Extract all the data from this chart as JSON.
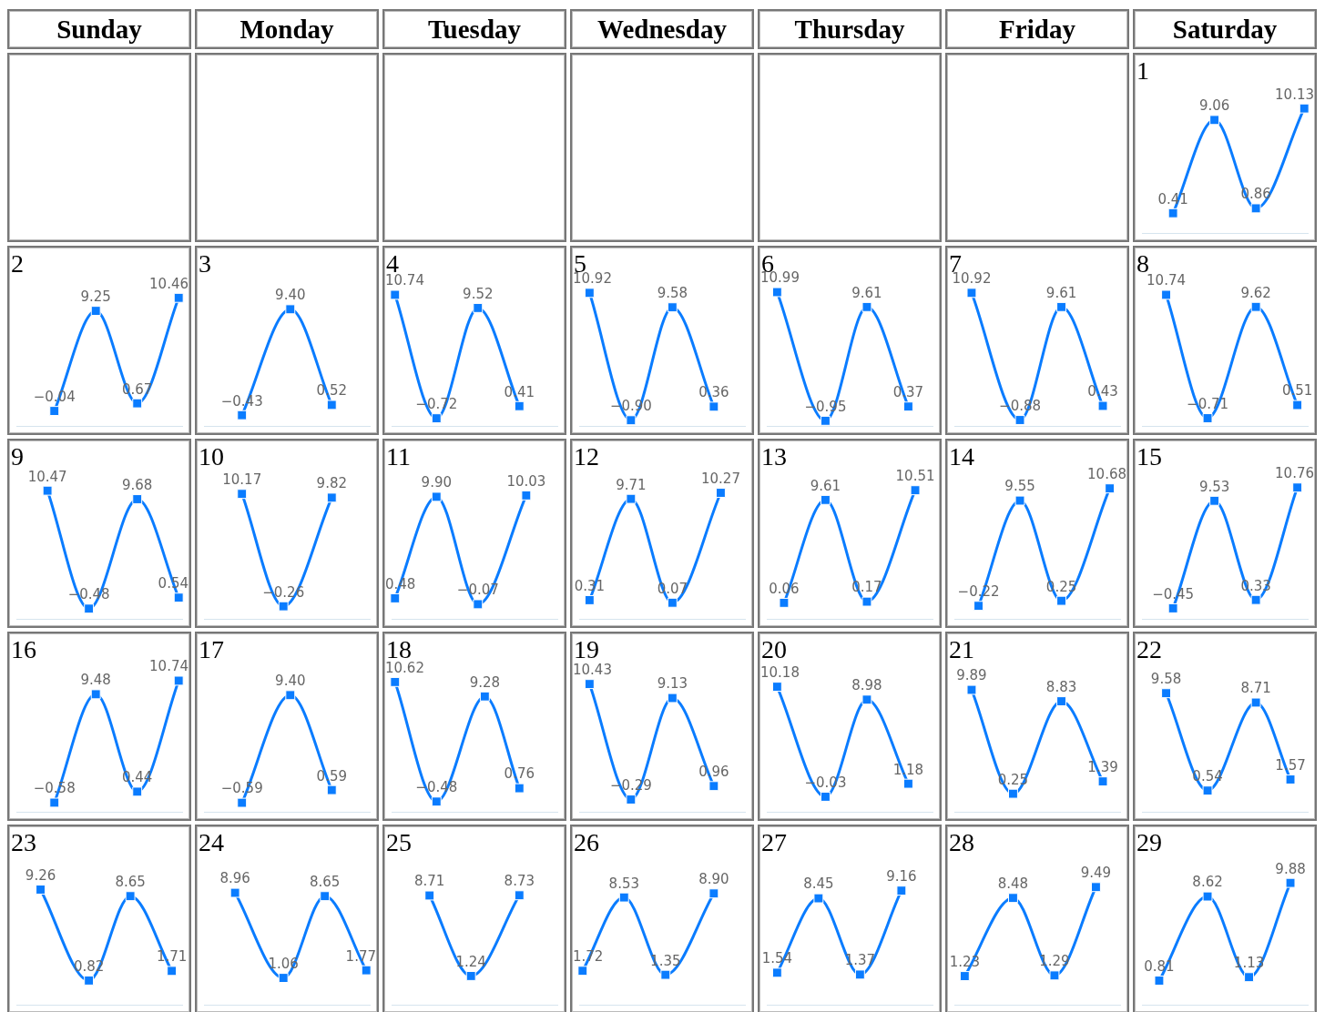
{
  "chart_data": [
    {
      "type": "other",
      "annotations": [
        "Sunday",
        "Monday",
        "Tuesday",
        "Wednesday",
        "Thursday",
        "Friday",
        "Saturday"
      ]
    },
    {
      "type": "line",
      "title": "1",
      "categories": [
        null,
        null,
        null,
        null,
        null,
        null,
        null,
        null,
        null,
        null,
        null,
        null,
        null,
        null,
        null,
        null,
        null,
        null,
        null,
        null,
        null,
        null,
        null,
        null
      ],
      "values": [
        null,
        null,
        null,
        null,
        0.41,
        null,
        null,
        null,
        null,
        null,
        9.06,
        null,
        null,
        null,
        null,
        null,
        0.86,
        null,
        null,
        null,
        null,
        null,
        null,
        10.13
      ],
      "value_labels": [
        null,
        null,
        null,
        null,
        "0.41",
        null,
        null,
        null,
        null,
        null,
        "9.06",
        null,
        null,
        null,
        null,
        null,
        "0.86",
        null,
        null,
        null,
        null,
        null,
        null,
        "10.13"
      ],
      "color": "#0a7cff",
      "marker": "square",
      "tick_labels": false
    },
    {
      "type": "line",
      "title": "2",
      "categories": [
        null,
        null,
        null,
        null,
        null,
        null,
        null,
        null,
        null,
        null,
        null,
        null,
        null,
        null,
        null,
        null,
        null,
        null,
        null,
        null,
        null,
        null,
        null,
        null
      ],
      "values": [
        null,
        null,
        null,
        null,
        null,
        -0.04,
        null,
        null,
        null,
        null,
        null,
        9.25,
        null,
        null,
        null,
        null,
        null,
        0.67,
        null,
        null,
        null,
        null,
        null,
        10.46
      ],
      "value_labels": [
        null,
        null,
        null,
        null,
        null,
        "−0.04",
        null,
        null,
        null,
        null,
        null,
        "9.25",
        null,
        null,
        null,
        null,
        null,
        "0.67",
        null,
        null,
        null,
        null,
        null,
        "10.46"
      ],
      "color": "#0a7cff",
      "marker": "square",
      "tick_labels": false
    },
    {
      "type": "line",
      "title": "3",
      "categories": [
        null,
        null,
        null,
        null,
        null,
        null,
        null,
        null,
        null,
        null,
        null,
        null,
        null,
        null,
        null,
        null,
        null,
        null,
        null,
        null,
        null,
        null,
        null,
        null
      ],
      "values": [
        null,
        null,
        null,
        null,
        null,
        -0.43,
        null,
        null,
        null,
        null,
        null,
        null,
        9.4,
        null,
        null,
        null,
        null,
        null,
        0.52,
        null,
        null,
        null,
        null,
        null
      ],
      "value_labels": [
        null,
        null,
        null,
        null,
        null,
        "−0.43",
        null,
        null,
        null,
        null,
        null,
        null,
        "9.40",
        null,
        null,
        null,
        null,
        null,
        "0.52",
        null,
        null,
        null,
        null,
        null
      ],
      "color": "#0a7cff",
      "marker": "square",
      "tick_labels": false
    },
    {
      "type": "line",
      "title": "4",
      "categories": [
        null,
        null,
        null,
        null,
        null,
        null,
        null,
        null,
        null,
        null,
        null,
        null,
        null,
        null,
        null,
        null,
        null,
        null,
        null,
        null,
        null,
        null,
        null,
        null
      ],
      "values": [
        10.74,
        null,
        null,
        null,
        null,
        null,
        -0.72,
        null,
        null,
        null,
        null,
        null,
        9.52,
        null,
        null,
        null,
        null,
        null,
        0.41,
        null,
        null,
        null,
        null,
        null
      ],
      "value_labels": [
        "10.74",
        null,
        null,
        null,
        null,
        null,
        "−0.72",
        null,
        null,
        null,
        null,
        null,
        "9.52",
        null,
        null,
        null,
        null,
        null,
        "0.41",
        null,
        null,
        null,
        null,
        null
      ],
      "color": "#0a7cff",
      "marker": "square",
      "tick_labels": false
    },
    {
      "type": "line",
      "title": "5",
      "categories": [
        null,
        null,
        null,
        null,
        null,
        null,
        null,
        null,
        null,
        null,
        null,
        null,
        null,
        null,
        null,
        null,
        null,
        null,
        null,
        null,
        null,
        null,
        null,
        null
      ],
      "values": [
        null,
        10.92,
        null,
        null,
        null,
        null,
        null,
        -0.9,
        null,
        null,
        null,
        null,
        null,
        9.58,
        null,
        null,
        null,
        null,
        null,
        0.36,
        null,
        null,
        null,
        null
      ],
      "value_labels": [
        null,
        "10.92",
        null,
        null,
        null,
        null,
        null,
        "−0.90",
        null,
        null,
        null,
        null,
        null,
        "9.58",
        null,
        null,
        null,
        null,
        null,
        "0.36",
        null,
        null,
        null,
        null
      ],
      "color": "#0a7cff",
      "marker": "square",
      "tick_labels": false
    },
    {
      "type": "line",
      "title": "6",
      "categories": [
        null,
        null,
        null,
        null,
        null,
        null,
        null,
        null,
        null,
        null,
        null,
        null,
        null,
        null,
        null,
        null,
        null,
        null,
        null,
        null,
        null,
        null,
        null,
        null
      ],
      "values": [
        null,
        10.99,
        null,
        null,
        null,
        null,
        null,
        null,
        -0.95,
        null,
        null,
        null,
        null,
        null,
        9.61,
        null,
        null,
        null,
        null,
        null,
        0.37,
        null,
        null,
        null
      ],
      "value_labels": [
        null,
        "10.99",
        null,
        null,
        null,
        null,
        null,
        null,
        "−0.95",
        null,
        null,
        null,
        null,
        null,
        "9.61",
        null,
        null,
        null,
        null,
        null,
        "0.37",
        null,
        null,
        null
      ],
      "color": "#0a7cff",
      "marker": "square",
      "tick_labels": false
    },
    {
      "type": "line",
      "title": "7",
      "categories": [
        null,
        null,
        null,
        null,
        null,
        null,
        null,
        null,
        null,
        null,
        null,
        null,
        null,
        null,
        null,
        null,
        null,
        null,
        null,
        null,
        null,
        null,
        null,
        null
      ],
      "values": [
        null,
        null,
        10.92,
        null,
        null,
        null,
        null,
        null,
        null,
        -0.88,
        null,
        null,
        null,
        null,
        null,
        9.61,
        null,
        null,
        null,
        null,
        null,
        0.43,
        null,
        null
      ],
      "value_labels": [
        null,
        null,
        "10.92",
        null,
        null,
        null,
        null,
        null,
        null,
        "−0.88",
        null,
        null,
        null,
        null,
        null,
        "9.61",
        null,
        null,
        null,
        null,
        null,
        "0.43",
        null,
        null
      ],
      "color": "#0a7cff",
      "marker": "square",
      "tick_labels": false
    },
    {
      "type": "line",
      "title": "8",
      "categories": [
        null,
        null,
        null,
        null,
        null,
        null,
        null,
        null,
        null,
        null,
        null,
        null,
        null,
        null,
        null,
        null,
        null,
        null,
        null,
        null,
        null,
        null,
        null,
        null
      ],
      "values": [
        null,
        null,
        null,
        10.74,
        null,
        null,
        null,
        null,
        null,
        -0.71,
        null,
        null,
        null,
        null,
        null,
        null,
        9.62,
        null,
        null,
        null,
        null,
        null,
        0.51,
        null
      ],
      "value_labels": [
        null,
        null,
        null,
        "10.74",
        null,
        null,
        null,
        null,
        null,
        "−0.71",
        null,
        null,
        null,
        null,
        null,
        null,
        "9.62",
        null,
        null,
        null,
        null,
        null,
        "0.51",
        null
      ],
      "color": "#0a7cff",
      "marker": "square",
      "tick_labels": false
    },
    {
      "type": "line",
      "title": "9",
      "categories": [
        null,
        null,
        null,
        null,
        null,
        null,
        null,
        null,
        null,
        null,
        null,
        null,
        null,
        null,
        null,
        null,
        null,
        null,
        null,
        null,
        null,
        null,
        null,
        null
      ],
      "values": [
        null,
        null,
        null,
        null,
        10.47,
        null,
        null,
        null,
        null,
        null,
        -0.48,
        null,
        null,
        null,
        null,
        null,
        null,
        9.68,
        null,
        null,
        null,
        null,
        null,
        0.54
      ],
      "value_labels": [
        null,
        null,
        null,
        null,
        "10.47",
        null,
        null,
        null,
        null,
        null,
        "−0.48",
        null,
        null,
        null,
        null,
        null,
        null,
        "9.68",
        null,
        null,
        null,
        null,
        null,
        "0.54"
      ],
      "color": "#0a7cff",
      "marker": "square",
      "tick_labels": false
    },
    {
      "type": "line",
      "title": "10",
      "categories": [
        null,
        null,
        null,
        null,
        null,
        null,
        null,
        null,
        null,
        null,
        null,
        null,
        null,
        null,
        null,
        null,
        null,
        null,
        null,
        null,
        null,
        null,
        null,
        null
      ],
      "values": [
        null,
        null,
        null,
        null,
        null,
        10.17,
        null,
        null,
        null,
        null,
        null,
        -0.26,
        null,
        null,
        null,
        null,
        null,
        null,
        9.82,
        null,
        null,
        null,
        null,
        null
      ],
      "value_labels": [
        null,
        null,
        null,
        null,
        null,
        "10.17",
        null,
        null,
        null,
        null,
        null,
        "−0.26",
        null,
        null,
        null,
        null,
        null,
        null,
        "9.82",
        null,
        null,
        null,
        null,
        null
      ],
      "color": "#0a7cff",
      "marker": "square",
      "tick_labels": false
    },
    {
      "type": "line",
      "title": "11",
      "categories": [
        null,
        null,
        null,
        null,
        null,
        null,
        null,
        null,
        null,
        null,
        null,
        null,
        null,
        null,
        null,
        null,
        null,
        null,
        null,
        null,
        null,
        null,
        null,
        null
      ],
      "values": [
        0.48,
        null,
        null,
        null,
        null,
        null,
        9.9,
        null,
        null,
        null,
        null,
        null,
        -0.07,
        null,
        null,
        null,
        null,
        null,
        null,
        10.03,
        null,
        null,
        null,
        null
      ],
      "value_labels": [
        "0.48",
        null,
        null,
        null,
        null,
        null,
        "9.90",
        null,
        null,
        null,
        null,
        null,
        "−0.07",
        null,
        null,
        null,
        null,
        null,
        null,
        "10.03",
        null,
        null,
        null,
        null
      ],
      "color": "#0a7cff",
      "marker": "square",
      "tick_labels": false
    },
    {
      "type": "line",
      "title": "12",
      "categories": [
        null,
        null,
        null,
        null,
        null,
        null,
        null,
        null,
        null,
        null,
        null,
        null,
        null,
        null,
        null,
        null,
        null,
        null,
        null,
        null,
        null,
        null,
        null,
        null
      ],
      "values": [
        null,
        0.31,
        null,
        null,
        null,
        null,
        null,
        9.71,
        null,
        null,
        null,
        null,
        null,
        0.07,
        null,
        null,
        null,
        null,
        null,
        null,
        10.27,
        null,
        null,
        null
      ],
      "value_labels": [
        null,
        "0.31",
        null,
        null,
        null,
        null,
        null,
        "9.71",
        null,
        null,
        null,
        null,
        null,
        "0.07",
        null,
        null,
        null,
        null,
        null,
        null,
        "10.27",
        null,
        null,
        null
      ],
      "color": "#0a7cff",
      "marker": "square",
      "tick_labels": false
    },
    {
      "type": "line",
      "title": "13",
      "categories": [
        null,
        null,
        null,
        null,
        null,
        null,
        null,
        null,
        null,
        null,
        null,
        null,
        null,
        null,
        null,
        null,
        null,
        null,
        null,
        null,
        null,
        null,
        null,
        null
      ],
      "values": [
        null,
        null,
        0.06,
        null,
        null,
        null,
        null,
        null,
        9.61,
        null,
        null,
        null,
        null,
        null,
        0.17,
        null,
        null,
        null,
        null,
        null,
        null,
        10.51,
        null,
        null
      ],
      "value_labels": [
        null,
        null,
        "0.06",
        null,
        null,
        null,
        null,
        null,
        "9.61",
        null,
        null,
        null,
        null,
        null,
        "0.17",
        null,
        null,
        null,
        null,
        null,
        null,
        "10.51",
        null,
        null
      ],
      "color": "#0a7cff",
      "marker": "square",
      "tick_labels": false
    },
    {
      "type": "line",
      "title": "14",
      "categories": [
        null,
        null,
        null,
        null,
        null,
        null,
        null,
        null,
        null,
        null,
        null,
        null,
        null,
        null,
        null,
        null,
        null,
        null,
        null,
        null,
        null,
        null,
        null,
        null
      ],
      "values": [
        null,
        null,
        null,
        -0.22,
        null,
        null,
        null,
        null,
        null,
        9.55,
        null,
        null,
        null,
        null,
        null,
        0.25,
        null,
        null,
        null,
        null,
        null,
        null,
        10.68,
        null
      ],
      "value_labels": [
        null,
        null,
        null,
        "−0.22",
        null,
        null,
        null,
        null,
        null,
        "9.55",
        null,
        null,
        null,
        null,
        null,
        "0.25",
        null,
        null,
        null,
        null,
        null,
        null,
        "10.68",
        null
      ],
      "color": "#0a7cff",
      "marker": "square",
      "tick_labels": false
    },
    {
      "type": "line",
      "title": "15",
      "categories": [
        null,
        null,
        null,
        null,
        null,
        null,
        null,
        null,
        null,
        null,
        null,
        null,
        null,
        null,
        null,
        null,
        null,
        null,
        null,
        null,
        null,
        null,
        null,
        null
      ],
      "values": [
        null,
        null,
        null,
        null,
        -0.45,
        null,
        null,
        null,
        null,
        null,
        9.53,
        null,
        null,
        null,
        null,
        null,
        0.33,
        null,
        null,
        null,
        null,
        null,
        10.76,
        null
      ],
      "value_labels": [
        null,
        null,
        null,
        null,
        "−0.45",
        null,
        null,
        null,
        null,
        null,
        "9.53",
        null,
        null,
        null,
        null,
        null,
        "0.33",
        null,
        null,
        null,
        null,
        null,
        "10.76",
        null
      ],
      "color": "#0a7cff",
      "marker": "square",
      "tick_labels": false
    },
    {
      "type": "line",
      "title": "16",
      "categories": [
        null,
        null,
        null,
        null,
        null,
        null,
        null,
        null,
        null,
        null,
        null,
        null,
        null,
        null,
        null,
        null,
        null,
        null,
        null,
        null,
        null,
        null,
        null,
        null
      ],
      "values": [
        null,
        null,
        null,
        null,
        null,
        -0.58,
        null,
        null,
        null,
        null,
        null,
        9.48,
        null,
        null,
        null,
        null,
        null,
        0.44,
        null,
        null,
        null,
        null,
        null,
        10.74
      ],
      "value_labels": [
        null,
        null,
        null,
        null,
        null,
        "−0.58",
        null,
        null,
        null,
        null,
        null,
        "9.48",
        null,
        null,
        null,
        null,
        null,
        "0.44",
        null,
        null,
        null,
        null,
        null,
        "10.74"
      ],
      "color": "#0a7cff",
      "marker": "square",
      "tick_labels": false
    },
    {
      "type": "line",
      "title": "17",
      "categories": [
        null,
        null,
        null,
        null,
        null,
        null,
        null,
        null,
        null,
        null,
        null,
        null,
        null,
        null,
        null,
        null,
        null,
        null,
        null,
        null,
        null,
        null,
        null,
        null
      ],
      "values": [
        null,
        null,
        null,
        null,
        null,
        -0.59,
        null,
        null,
        null,
        null,
        null,
        null,
        9.4,
        null,
        null,
        null,
        null,
        null,
        0.59,
        null,
        null,
        null,
        null,
        null
      ],
      "value_labels": [
        null,
        null,
        null,
        null,
        null,
        "−0.59",
        null,
        null,
        null,
        null,
        null,
        null,
        "9.40",
        null,
        null,
        null,
        null,
        null,
        "0.59",
        null,
        null,
        null,
        null,
        null
      ],
      "color": "#0a7cff",
      "marker": "square",
      "tick_labels": false
    },
    {
      "type": "line",
      "title": "18",
      "categories": [
        null,
        null,
        null,
        null,
        null,
        null,
        null,
        null,
        null,
        null,
        null,
        null,
        null,
        null,
        null,
        null,
        null,
        null,
        null,
        null,
        null,
        null,
        null,
        null
      ],
      "values": [
        10.62,
        null,
        null,
        null,
        null,
        null,
        -0.48,
        null,
        null,
        null,
        null,
        null,
        null,
        9.28,
        null,
        null,
        null,
        null,
        0.76,
        null,
        null,
        null,
        null,
        null
      ],
      "value_labels": [
        "10.62",
        null,
        null,
        null,
        null,
        null,
        "−0.48",
        null,
        null,
        null,
        null,
        null,
        null,
        "9.28",
        null,
        null,
        null,
        null,
        "0.76",
        null,
        null,
        null,
        null,
        null
      ],
      "color": "#0a7cff",
      "marker": "square",
      "tick_labels": false
    },
    {
      "type": "line",
      "title": "19",
      "categories": [
        null,
        null,
        null,
        null,
        null,
        null,
        null,
        null,
        null,
        null,
        null,
        null,
        null,
        null,
        null,
        null,
        null,
        null,
        null,
        null,
        null,
        null,
        null,
        null
      ],
      "values": [
        null,
        10.43,
        null,
        null,
        null,
        null,
        null,
        -0.29,
        null,
        null,
        null,
        null,
        null,
        9.13,
        null,
        null,
        null,
        null,
        null,
        0.96,
        null,
        null,
        null,
        null
      ],
      "value_labels": [
        null,
        "10.43",
        null,
        null,
        null,
        null,
        null,
        "−0.29",
        null,
        null,
        null,
        null,
        null,
        "9.13",
        null,
        null,
        null,
        null,
        null,
        "0.96",
        null,
        null,
        null,
        null
      ],
      "color": "#0a7cff",
      "marker": "square",
      "tick_labels": false
    },
    {
      "type": "line",
      "title": "20",
      "categories": [
        null,
        null,
        null,
        null,
        null,
        null,
        null,
        null,
        null,
        null,
        null,
        null,
        null,
        null,
        null,
        null,
        null,
        null,
        null,
        null,
        null,
        null,
        null,
        null
      ],
      "values": [
        null,
        10.18,
        null,
        null,
        null,
        null,
        null,
        null,
        -0.03,
        null,
        null,
        null,
        null,
        null,
        8.98,
        null,
        null,
        null,
        null,
        null,
        1.18,
        null,
        null,
        null
      ],
      "value_labels": [
        null,
        "10.18",
        null,
        null,
        null,
        null,
        null,
        null,
        "−0.03",
        null,
        null,
        null,
        null,
        null,
        "8.98",
        null,
        null,
        null,
        null,
        null,
        "1.18",
        null,
        null,
        null
      ],
      "color": "#0a7cff",
      "marker": "square",
      "tick_labels": false
    },
    {
      "type": "line",
      "title": "21",
      "categories": [
        null,
        null,
        null,
        null,
        null,
        null,
        null,
        null,
        null,
        null,
        null,
        null,
        null,
        null,
        null,
        null,
        null,
        null,
        null,
        null,
        null,
        null,
        null,
        null
      ],
      "values": [
        null,
        null,
        9.89,
        null,
        null,
        null,
        null,
        null,
        0.25,
        null,
        null,
        null,
        null,
        null,
        null,
        8.83,
        null,
        null,
        null,
        null,
        null,
        1.39,
        null,
        null
      ],
      "value_labels": [
        null,
        null,
        "9.89",
        null,
        null,
        null,
        null,
        null,
        "0.25",
        null,
        null,
        null,
        null,
        null,
        null,
        "8.83",
        null,
        null,
        null,
        null,
        null,
        "1.39",
        null,
        null
      ],
      "color": "#0a7cff",
      "marker": "square",
      "tick_labels": false
    },
    {
      "type": "line",
      "title": "22",
      "categories": [
        null,
        null,
        null,
        null,
        null,
        null,
        null,
        null,
        null,
        null,
        null,
        null,
        null,
        null,
        null,
        null,
        null,
        null,
        null,
        null,
        null,
        null,
        null,
        null
      ],
      "values": [
        null,
        null,
        null,
        9.58,
        null,
        null,
        null,
        null,
        null,
        0.54,
        null,
        null,
        null,
        null,
        null,
        null,
        8.71,
        null,
        null,
        null,
        null,
        1.57,
        null,
        null
      ],
      "value_labels": [
        null,
        null,
        null,
        "9.58",
        null,
        null,
        null,
        null,
        null,
        "0.54",
        null,
        null,
        null,
        null,
        null,
        null,
        "8.71",
        null,
        null,
        null,
        null,
        "1.57",
        null,
        null
      ],
      "color": "#0a7cff",
      "marker": "square",
      "tick_labels": false
    },
    {
      "type": "line",
      "title": "23",
      "categories": [
        null,
        null,
        null,
        null,
        null,
        null,
        null,
        null,
        null,
        null,
        null,
        null,
        null,
        null,
        null,
        null,
        null,
        null,
        null,
        null,
        null,
        null,
        null,
        null
      ],
      "values": [
        null,
        null,
        null,
        9.26,
        null,
        null,
        null,
        null,
        null,
        null,
        0.82,
        null,
        null,
        null,
        null,
        null,
        8.65,
        null,
        null,
        null,
        null,
        null,
        1.71,
        null
      ],
      "value_labels": [
        null,
        null,
        null,
        "9.26",
        null,
        null,
        null,
        null,
        null,
        null,
        "0.82",
        null,
        null,
        null,
        null,
        null,
        "8.65",
        null,
        null,
        null,
        null,
        null,
        "1.71",
        null
      ],
      "color": "#0a7cff",
      "marker": "square",
      "tick_labels": false
    },
    {
      "type": "line",
      "title": "24",
      "categories": [
        null,
        null,
        null,
        null,
        null,
        null,
        null,
        null,
        null,
        null,
        null,
        null,
        null,
        null,
        null,
        null,
        null,
        null,
        null,
        null,
        null,
        null,
        null,
        null
      ],
      "values": [
        null,
        null,
        null,
        null,
        8.96,
        null,
        null,
        null,
        null,
        null,
        null,
        1.06,
        null,
        null,
        null,
        null,
        null,
        8.65,
        null,
        null,
        null,
        null,
        null,
        1.77
      ],
      "value_labels": [
        null,
        null,
        null,
        null,
        "8.96",
        null,
        null,
        null,
        null,
        null,
        null,
        "1.06",
        null,
        null,
        null,
        null,
        null,
        "8.65",
        null,
        null,
        null,
        null,
        null,
        "1.77"
      ],
      "color": "#0a7cff",
      "marker": "square",
      "tick_labels": false
    },
    {
      "type": "line",
      "title": "25",
      "categories": [
        null,
        null,
        null,
        null,
        null,
        null,
        null,
        null,
        null,
        null,
        null,
        null,
        null,
        null,
        null,
        null,
        null,
        null,
        null,
        null,
        null,
        null,
        null,
        null
      ],
      "values": [
        null,
        null,
        null,
        null,
        null,
        8.71,
        null,
        null,
        null,
        null,
        null,
        1.24,
        null,
        null,
        null,
        null,
        null,
        null,
        8.73,
        null,
        null,
        null,
        null,
        null
      ],
      "value_labels": [
        null,
        null,
        null,
        null,
        null,
        "8.71",
        null,
        null,
        null,
        null,
        null,
        "1.24",
        null,
        null,
        null,
        null,
        null,
        null,
        "8.73",
        null,
        null,
        null,
        null,
        null
      ],
      "color": "#0a7cff",
      "marker": "square",
      "tick_labels": false
    },
    {
      "type": "line",
      "title": "26",
      "categories": [
        null,
        null,
        null,
        null,
        null,
        null,
        null,
        null,
        null,
        null,
        null,
        null,
        null,
        null,
        null,
        null,
        null,
        null,
        null,
        null,
        null,
        null,
        null,
        null
      ],
      "values": [
        1.72,
        null,
        null,
        null,
        null,
        null,
        8.53,
        null,
        null,
        null,
        null,
        null,
        1.35,
        null,
        null,
        null,
        null,
        null,
        null,
        8.9,
        null,
        null,
        null,
        null
      ],
      "value_labels": [
        "1.72",
        null,
        null,
        null,
        null,
        null,
        "8.53",
        null,
        null,
        null,
        null,
        null,
        "1.35",
        null,
        null,
        null,
        null,
        null,
        null,
        "8.90",
        null,
        null,
        null,
        null
      ],
      "color": "#0a7cff",
      "marker": "square",
      "tick_labels": false
    },
    {
      "type": "line",
      "title": "27",
      "categories": [
        null,
        null,
        null,
        null,
        null,
        null,
        null,
        null,
        null,
        null,
        null,
        null,
        null,
        null,
        null,
        null,
        null,
        null,
        null,
        null,
        null,
        null,
        null,
        null
      ],
      "values": [
        null,
        1.54,
        null,
        null,
        null,
        null,
        null,
        8.45,
        null,
        null,
        null,
        null,
        null,
        1.37,
        null,
        null,
        null,
        null,
        null,
        9.16,
        null,
        null,
        null,
        null
      ],
      "value_labels": [
        null,
        "1.54",
        null,
        null,
        null,
        null,
        null,
        "8.45",
        null,
        null,
        null,
        null,
        null,
        "1.37",
        null,
        null,
        null,
        null,
        null,
        "9.16",
        null,
        null,
        null,
        null
      ],
      "color": "#0a7cff",
      "marker": "square",
      "tick_labels": false
    },
    {
      "type": "line",
      "title": "28",
      "categories": [
        null,
        null,
        null,
        null,
        null,
        null,
        null,
        null,
        null,
        null,
        null,
        null,
        null,
        null,
        null,
        null,
        null,
        null,
        null,
        null,
        null,
        null,
        null,
        null
      ],
      "values": [
        null,
        1.23,
        null,
        null,
        null,
        null,
        null,
        null,
        8.48,
        null,
        null,
        null,
        null,
        null,
        1.29,
        null,
        null,
        null,
        null,
        null,
        9.49,
        null,
        null,
        null
      ],
      "value_labels": [
        null,
        "1.23",
        null,
        null,
        null,
        null,
        null,
        null,
        "8.48",
        null,
        null,
        null,
        null,
        null,
        "1.29",
        null,
        null,
        null,
        null,
        null,
        "9.49",
        null,
        null,
        null
      ],
      "color": "#0a7cff",
      "marker": "square",
      "tick_labels": false
    },
    {
      "type": "line",
      "title": "29",
      "categories": [
        null,
        null,
        null,
        null,
        null,
        null,
        null,
        null,
        null,
        null,
        null,
        null,
        null,
        null,
        null,
        null,
        null,
        null,
        null,
        null,
        null,
        null,
        null,
        null
      ],
      "values": [
        null,
        null,
        0.81,
        null,
        null,
        null,
        null,
        null,
        null,
        8.62,
        null,
        null,
        null,
        null,
        null,
        1.13,
        null,
        null,
        null,
        null,
        null,
        9.88,
        null,
        null
      ],
      "value_labels": [
        null,
        null,
        "0.81",
        null,
        null,
        null,
        null,
        null,
        null,
        "8.62",
        null,
        null,
        null,
        null,
        null,
        "1.13",
        null,
        null,
        null,
        null,
        null,
        "9.88",
        null,
        null
      ],
      "color": "#0a7cff",
      "marker": "square",
      "tick_labels": false
    }
  ]
}
